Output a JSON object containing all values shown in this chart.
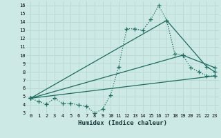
{
  "xlabel": "Humidex (Indice chaleur)",
  "bg_color": "#cce9e5",
  "grid_color": "#b8d8d4",
  "line_color": "#1a6b5e",
  "xlim": [
    -0.5,
    23.5
  ],
  "ylim": [
    3,
    16.5
  ],
  "xtick_labels": [
    "0",
    "1",
    "2",
    "3",
    "4",
    "5",
    "6",
    "7",
    "8",
    "9",
    "10",
    "11",
    "12",
    "13",
    "14",
    "15",
    "16",
    "17",
    "18",
    "19",
    "20",
    "21",
    "22",
    "23"
  ],
  "ytick_labels": [
    "3",
    "4",
    "5",
    "6",
    "7",
    "8",
    "9",
    "10",
    "11",
    "12",
    "13",
    "14",
    "15",
    "16"
  ],
  "ytick_vals": [
    3,
    4,
    5,
    6,
    7,
    8,
    9,
    10,
    11,
    12,
    13,
    14,
    15,
    16
  ],
  "xtick_vals": [
    0,
    1,
    2,
    3,
    4,
    5,
    6,
    7,
    8,
    9,
    10,
    11,
    12,
    13,
    14,
    15,
    16,
    17,
    18,
    19,
    20,
    21,
    22,
    23
  ],
  "series_main": {
    "x": [
      0,
      1,
      2,
      3,
      4,
      5,
      6,
      7,
      8,
      9,
      10,
      11,
      12,
      13,
      14,
      15,
      16,
      17,
      18,
      19,
      20,
      21,
      22,
      23
    ],
    "y": [
      4.8,
      4.4,
      4.1,
      4.8,
      4.2,
      4.2,
      4.0,
      3.8,
      3.0,
      3.5,
      5.2,
      8.6,
      13.2,
      13.2,
      13.0,
      14.3,
      16.0,
      14.2,
      10.2,
      10.0,
      8.5,
      8.0,
      7.5,
      7.5
    ]
  },
  "series_lines": [
    {
      "x": [
        0,
        23
      ],
      "y": [
        4.8,
        7.5
      ]
    },
    {
      "x": [
        0,
        19,
        23
      ],
      "y": [
        4.8,
        10.0,
        8.5
      ]
    },
    {
      "x": [
        0,
        17,
        22,
        23
      ],
      "y": [
        4.8,
        14.2,
        8.6,
        8.0
      ]
    }
  ]
}
